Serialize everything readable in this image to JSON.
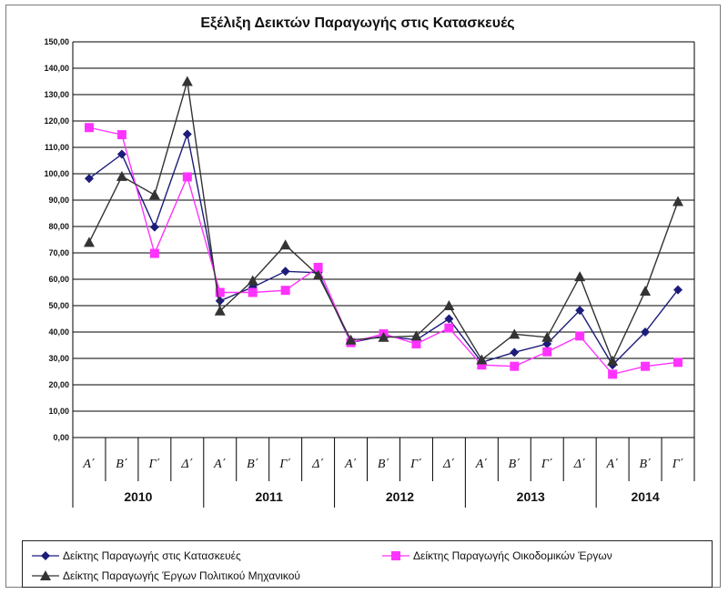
{
  "chart_data": {
    "type": "line",
    "title": "Εξέλιξη Δεικτών Παραγωγής στις Κατασκευές",
    "xlabel": "",
    "ylabel": "",
    "ylim": [
      0,
      150
    ],
    "y_ticks": [
      "0,00",
      "10,00",
      "20,00",
      "30,00",
      "40,00",
      "50,00",
      "60,00",
      "70,00",
      "80,00",
      "90,00",
      "100,00",
      "110,00",
      "120,00",
      "130,00",
      "140,00",
      "150,00"
    ],
    "grid": true,
    "legend_position": "bottom",
    "categories": [
      "Α΄",
      "Β΄",
      "Γ΄",
      "Δ΄",
      "Α΄",
      "Β΄",
      "Γ΄",
      "Δ΄",
      "Α΄",
      "Β΄",
      "Γ΄",
      "Δ΄",
      "Α΄",
      "Β΄",
      "Γ΄",
      "Δ΄",
      "Α΄",
      "Β΄",
      "Γ΄"
    ],
    "years": [
      {
        "label": "2010",
        "quarters": 4
      },
      {
        "label": "2011",
        "quarters": 4
      },
      {
        "label": "2012",
        "quarters": 4
      },
      {
        "label": "2013",
        "quarters": 4
      },
      {
        "label": "2014",
        "quarters": 3
      }
    ],
    "series": [
      {
        "name": "Δείκτης Παραγωγής στις Κατασκευές",
        "color": "#1c1c7a",
        "marker": "diamond",
        "values": [
          98.2,
          107.4,
          79.8,
          115.0,
          51.8,
          57.0,
          63.0,
          62.5,
          36.0,
          38.5,
          37.0,
          45.0,
          28.5,
          32.3,
          35.5,
          48.2,
          27.5,
          40.0,
          56.0
        ]
      },
      {
        "name": "Δείκτης Παραγωγής Οικοδομικών Έργων",
        "color": "#ff33ff",
        "marker": "square",
        "values": [
          117.5,
          114.8,
          69.8,
          98.8,
          55.0,
          55.0,
          55.8,
          64.5,
          36.0,
          39.3,
          35.5,
          41.5,
          27.5,
          27.0,
          32.5,
          38.5,
          24.0,
          27.0,
          28.5
        ]
      },
      {
        "name": "Δείκτης Παραγωγής Έργων Πολιτικού Μηχανικού",
        "color": "#333333",
        "marker": "triangle",
        "values": [
          74.0,
          99.0,
          92.0,
          135.0,
          48.0,
          59.5,
          73.0,
          61.5,
          37.0,
          38.0,
          38.5,
          50.0,
          29.5,
          39.2,
          38.0,
          61.0,
          29.0,
          55.5,
          89.5
        ]
      }
    ]
  }
}
